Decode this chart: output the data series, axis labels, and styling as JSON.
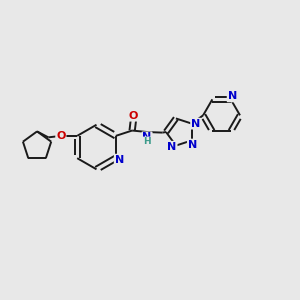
{
  "bg_color": "#e8e8e8",
  "bond_color": "#1a1a1a",
  "bond_width": 1.4,
  "atom_colors": {
    "N": "#0000cc",
    "O": "#cc0000",
    "C": "#1a1a1a",
    "H": "#3a9a8a"
  },
  "font_size": 8.0,
  "figsize": [
    3.0,
    3.0
  ],
  "dpi": 100
}
